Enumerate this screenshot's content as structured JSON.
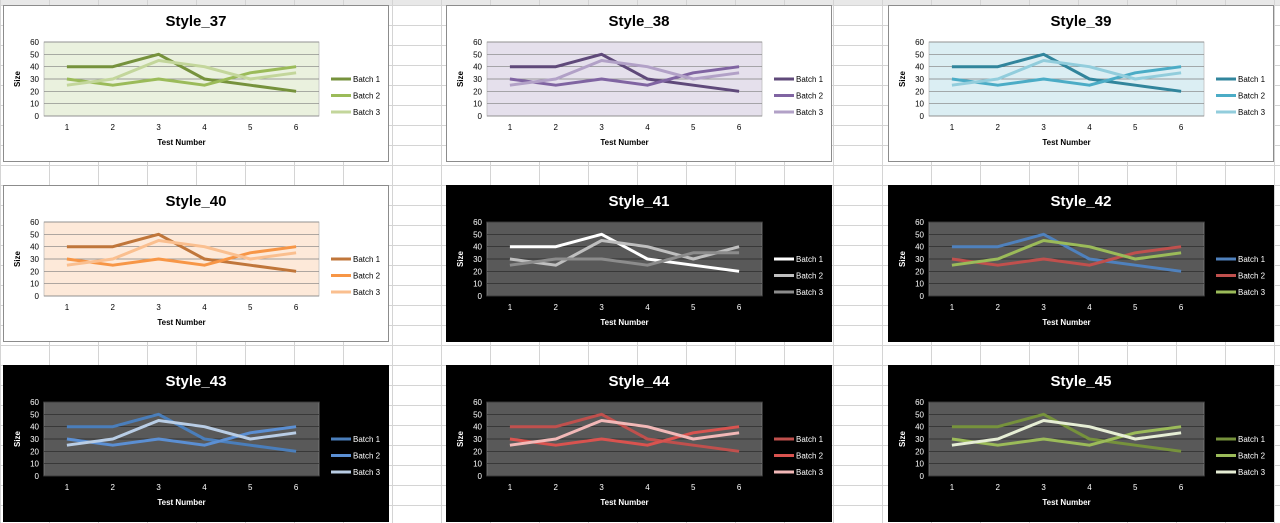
{
  "chart_data": [
    {
      "type": "line",
      "title": "Style_37",
      "theme": "light",
      "plot_bg": "#eaf1de",
      "colors": [
        "#76923c",
        "#9bbb59",
        "#c3d69b"
      ],
      "x": [
        1,
        2,
        3,
        4,
        5,
        6
      ],
      "xlabel": "Test Number",
      "ylabel": "Size",
      "ylim": [
        0,
        60
      ],
      "yticks": [
        0,
        10,
        20,
        30,
        40,
        50,
        60
      ],
      "legend": "right",
      "series": [
        {
          "name": "Batch 1",
          "values": [
            40,
            40,
            50,
            30,
            25,
            20
          ]
        },
        {
          "name": "Batch 2",
          "values": [
            30,
            25,
            30,
            25,
            35,
            40
          ]
        },
        {
          "name": "Batch 3",
          "values": [
            25,
            30,
            45,
            40,
            30,
            35
          ]
        }
      ]
    },
    {
      "type": "line",
      "title": "Style_38",
      "theme": "light",
      "plot_bg": "#e5e0ec",
      "colors": [
        "#5f497a",
        "#8064a2",
        "#b2a1c7"
      ],
      "x": [
        1,
        2,
        3,
        4,
        5,
        6
      ],
      "xlabel": "Test Number",
      "ylabel": "Size",
      "ylim": [
        0,
        60
      ],
      "yticks": [
        0,
        10,
        20,
        30,
        40,
        50,
        60
      ],
      "legend": "right",
      "series": [
        {
          "name": "Batch 1",
          "values": [
            40,
            40,
            50,
            30,
            25,
            20
          ]
        },
        {
          "name": "Batch 2",
          "values": [
            30,
            25,
            30,
            25,
            35,
            40
          ]
        },
        {
          "name": "Batch 3",
          "values": [
            25,
            30,
            45,
            40,
            30,
            35
          ]
        }
      ]
    },
    {
      "type": "line",
      "title": "Style_39",
      "theme": "light",
      "plot_bg": "#dbeef3",
      "colors": [
        "#31859c",
        "#4bacc6",
        "#92cddc"
      ],
      "x": [
        1,
        2,
        3,
        4,
        5,
        6
      ],
      "xlabel": "Test Number",
      "ylabel": "Size",
      "ylim": [
        0,
        60
      ],
      "yticks": [
        0,
        10,
        20,
        30,
        40,
        50,
        60
      ],
      "legend": "right",
      "series": [
        {
          "name": "Batch 1",
          "values": [
            40,
            40,
            50,
            30,
            25,
            20
          ]
        },
        {
          "name": "Batch 2",
          "values": [
            30,
            25,
            30,
            25,
            35,
            40
          ]
        },
        {
          "name": "Batch 3",
          "values": [
            25,
            30,
            45,
            40,
            30,
            35
          ]
        }
      ]
    },
    {
      "type": "line",
      "title": "Style_40",
      "theme": "light",
      "plot_bg": "#fde9d9",
      "colors": [
        "#c0763a",
        "#f79646",
        "#fabf8f"
      ],
      "x": [
        1,
        2,
        3,
        4,
        5,
        6
      ],
      "xlabel": "Test Number",
      "ylabel": "Size",
      "ylim": [
        0,
        60
      ],
      "yticks": [
        0,
        10,
        20,
        30,
        40,
        50,
        60
      ],
      "legend": "right",
      "series": [
        {
          "name": "Batch 1",
          "values": [
            40,
            40,
            50,
            30,
            25,
            20
          ]
        },
        {
          "name": "Batch 2",
          "values": [
            30,
            25,
            30,
            25,
            35,
            40
          ]
        },
        {
          "name": "Batch 3",
          "values": [
            25,
            30,
            45,
            40,
            30,
            35
          ]
        }
      ]
    },
    {
      "type": "line",
      "title": "Style_41",
      "theme": "dark",
      "plot_bg": "#595959",
      "colors": [
        "#ffffff",
        "#bfbfbf",
        "#8c8c8c"
      ],
      "x": [
        1,
        2,
        3,
        4,
        5,
        6
      ],
      "xlabel": "Test Number",
      "ylabel": "Size",
      "ylim": [
        0,
        60
      ],
      "yticks": [
        0,
        10,
        20,
        30,
        40,
        50,
        60
      ],
      "legend": "right",
      "series": [
        {
          "name": "Batch 1",
          "values": [
            40,
            40,
            50,
            30,
            25,
            20
          ]
        },
        {
          "name": "Batch 2",
          "values": [
            30,
            25,
            45,
            40,
            30,
            40
          ]
        },
        {
          "name": "Batch 3",
          "values": [
            25,
            30,
            30,
            25,
            35,
            35
          ]
        }
      ]
    },
    {
      "type": "line",
      "title": "Style_42",
      "theme": "dark",
      "plot_bg": "#595959",
      "colors": [
        "#4f81bd",
        "#c0504d",
        "#9bbb59"
      ],
      "x": [
        1,
        2,
        3,
        4,
        5,
        6
      ],
      "xlabel": "Test Number",
      "ylabel": "Size",
      "ylim": [
        0,
        60
      ],
      "yticks": [
        0,
        10,
        20,
        30,
        40,
        50,
        60
      ],
      "legend": "right",
      "series": [
        {
          "name": "Batch 1",
          "values": [
            40,
            40,
            50,
            30,
            25,
            20
          ]
        },
        {
          "name": "Batch 2",
          "values": [
            30,
            25,
            30,
            25,
            35,
            40
          ]
        },
        {
          "name": "Batch 3",
          "values": [
            25,
            30,
            45,
            40,
            30,
            35
          ]
        }
      ]
    },
    {
      "type": "line",
      "title": "Style_43",
      "theme": "dark",
      "plot_bg": "#595959",
      "colors": [
        "#4a7ebb",
        "#5b8fd3",
        "#b9cde5"
      ],
      "x": [
        1,
        2,
        3,
        4,
        5,
        6
      ],
      "xlabel": "Test Number",
      "ylabel": "Size",
      "ylim": [
        0,
        60
      ],
      "yticks": [
        0,
        10,
        20,
        30,
        40,
        50,
        60
      ],
      "legend": "right",
      "series": [
        {
          "name": "Batch 1",
          "values": [
            40,
            40,
            50,
            30,
            25,
            20
          ]
        },
        {
          "name": "Batch 2",
          "values": [
            30,
            25,
            30,
            25,
            35,
            40
          ]
        },
        {
          "name": "Batch 3",
          "values": [
            25,
            30,
            45,
            40,
            30,
            35
          ]
        }
      ]
    },
    {
      "type": "line",
      "title": "Style_44",
      "theme": "dark",
      "plot_bg": "#595959",
      "colors": [
        "#c0504d",
        "#d9534f",
        "#f2b8b7"
      ],
      "x": [
        1,
        2,
        3,
        4,
        5,
        6
      ],
      "xlabel": "Test Number",
      "ylabel": "Size",
      "ylim": [
        0,
        60
      ],
      "yticks": [
        0,
        10,
        20,
        30,
        40,
        50,
        60
      ],
      "legend": "right",
      "series": [
        {
          "name": "Batch 1",
          "values": [
            40,
            40,
            50,
            30,
            25,
            20
          ]
        },
        {
          "name": "Batch 2",
          "values": [
            30,
            25,
            30,
            25,
            35,
            40
          ]
        },
        {
          "name": "Batch 3",
          "values": [
            25,
            30,
            45,
            40,
            30,
            35
          ]
        }
      ]
    },
    {
      "type": "line",
      "title": "Style_45",
      "theme": "dark",
      "plot_bg": "#595959",
      "colors": [
        "#76923c",
        "#9bbb59",
        "#e6eed5"
      ],
      "x": [
        1,
        2,
        3,
        4,
        5,
        6
      ],
      "xlabel": "Test Number",
      "ylabel": "Size",
      "ylim": [
        0,
        60
      ],
      "yticks": [
        0,
        10,
        20,
        30,
        40,
        50,
        60
      ],
      "legend": "right",
      "series": [
        {
          "name": "Batch 1",
          "values": [
            40,
            40,
            50,
            30,
            25,
            20
          ]
        },
        {
          "name": "Batch 2",
          "values": [
            30,
            25,
            30,
            25,
            35,
            40
          ]
        },
        {
          "name": "Batch 3",
          "values": [
            25,
            30,
            45,
            40,
            30,
            35
          ]
        }
      ]
    }
  ]
}
